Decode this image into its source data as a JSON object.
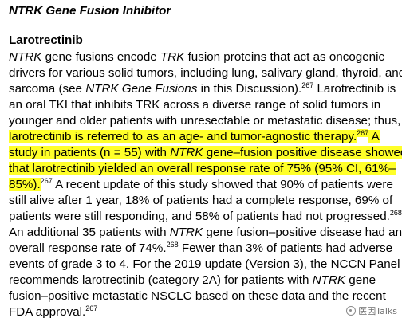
{
  "title": "NTRK Gene Fusion Inhibitor",
  "drug": "Larotrectinib",
  "lines": [
    [
      {
        "t": "NTRK",
        "i": true
      },
      {
        "t": " gene fusions encode "
      },
      {
        "t": "TRK",
        "i": true
      },
      {
        "t": " fusion proteins that act as oncogenic"
      }
    ],
    [
      {
        "t": "drivers for various solid tumors, including lung, salivary gland, thyroid, and"
      }
    ],
    [
      {
        "t": "sarcoma (see "
      },
      {
        "t": "NTRK Gene Fusions",
        "i": true
      },
      {
        "t": " in this Discussion)."
      },
      {
        "t": "267",
        "s": true
      },
      {
        "t": " Larotrectinib is"
      }
    ],
    [
      {
        "t": "an oral TKI that inhibits TRK across a diverse range of solid tumors in"
      }
    ],
    [
      {
        "t": "younger and older patients with unresectable or metastatic disease; thus,"
      }
    ],
    [
      {
        "t": "larotrectinib is referred to as an age- and tumor-agnostic therapy.",
        "h": true
      },
      {
        "t": "267",
        "s": true,
        "h": true
      },
      {
        "t": " A",
        "h": true
      }
    ],
    [
      {
        "t": "study in patients (n = 55) with ",
        "h": true
      },
      {
        "t": "NTRK",
        "i": true,
        "h": true
      },
      {
        "t": " gene–fusion positive disease showed",
        "h": true
      }
    ],
    [
      {
        "t": "that larotrectinib yielded an overall response rate of 75% (95% CI, 61%–",
        "h": true
      }
    ],
    [
      {
        "t": "85%).",
        "h": true
      },
      {
        "t": "267",
        "s": true
      },
      {
        "t": " A recent update of this study showed that 90% of patients were"
      }
    ],
    [
      {
        "t": "still alive after 1 year, 18% of patients had a complete response, 69% of"
      }
    ],
    [
      {
        "t": "patients were still responding, and 58% of patients had not progressed."
      },
      {
        "t": "268",
        "s": true
      }
    ],
    [
      {
        "t": "An additional 35 patients with "
      },
      {
        "t": "NTRK",
        "i": true
      },
      {
        "t": " gene fusion–positive disease had an"
      }
    ],
    [
      {
        "t": "overall response rate of 74%."
      },
      {
        "t": "268",
        "s": true
      },
      {
        "t": " Fewer than 3% of patients had adverse"
      }
    ],
    [
      {
        "t": "events of grade 3 to 4. For the 2019 update (Version 3), the NCCN Panel"
      }
    ],
    [
      {
        "t": "recommends larotrectinib (category 2A) for patients with "
      },
      {
        "t": "NTRK",
        "i": true
      },
      {
        "t": " gene"
      }
    ],
    [
      {
        "t": "fusion–positive metastatic NSCLC based on these data and the recent"
      }
    ],
    [
      {
        "t": "FDA approval."
      },
      {
        "t": "267",
        "s": true
      }
    ]
  ],
  "watermark": {
    "text": "医因Talks",
    "icon": "wechat-logo-icon"
  }
}
